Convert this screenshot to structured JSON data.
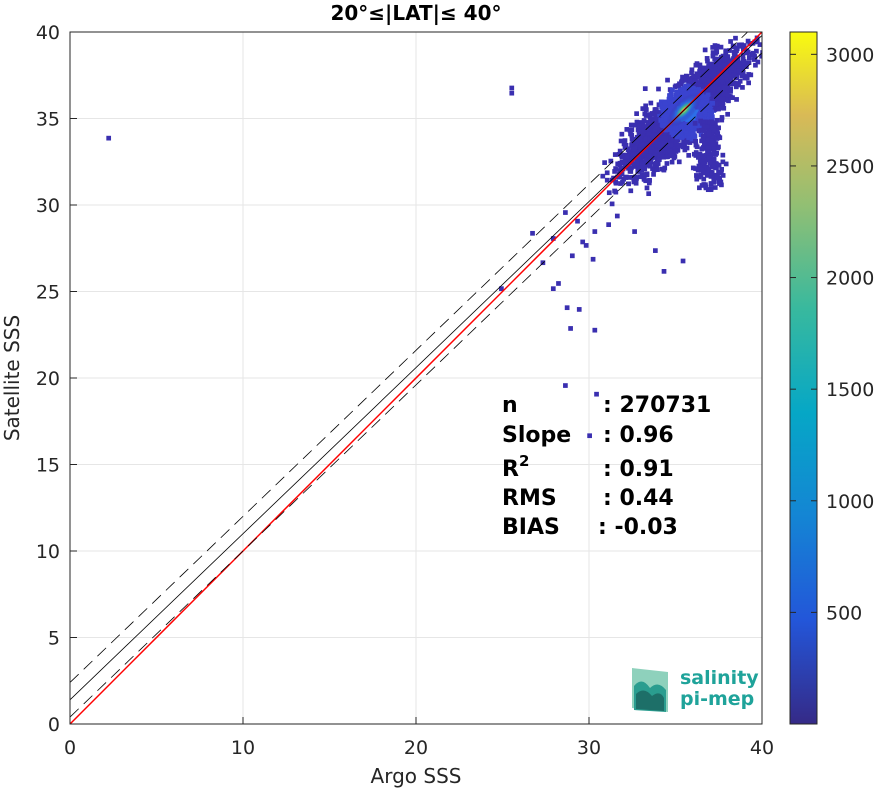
{
  "chart_data": {
    "type": "heatmap",
    "title": "20°≤|LAT|≤ 40°",
    "xlabel": "Argo SSS",
    "ylabel": "Satellite SSS",
    "xlim": [
      0,
      40
    ],
    "ylim": [
      0,
      40
    ],
    "xticks": [
      "0",
      "10",
      "20",
      "30",
      "40"
    ],
    "yticks": [
      "0",
      "5",
      "10",
      "15",
      "20",
      "25",
      "30",
      "35",
      "40"
    ],
    "grid": true,
    "colorbar": {
      "range": [
        0,
        3100
      ],
      "ticks": [
        "500",
        "1000",
        "1500",
        "2000",
        "2500",
        "3000"
      ],
      "colormap": "parula"
    },
    "reference_lines": [
      {
        "name": "1:1",
        "slope": 1,
        "intercept": 0,
        "color": "#ff0000"
      },
      {
        "name": "fit",
        "slope": 0.96,
        "intercept": 1.4,
        "color": "#000000"
      },
      {
        "name": "fit+1",
        "slope": 0.96,
        "intercept": 2.4,
        "color": "#000000",
        "dash": true
      },
      {
        "name": "fit-1",
        "slope": 0.96,
        "intercept": 0.4,
        "color": "#000000",
        "dash": true
      }
    ],
    "density_core": {
      "x": 35.5,
      "y": 35.5,
      "peak_count": 3000
    },
    "stats": [
      {
        "label": "n",
        "value": ": 270731"
      },
      {
        "label": "Slope",
        "value": ": 0.96"
      },
      {
        "label": "R",
        "sup": "2",
        "value": ": 0.91"
      },
      {
        "label": "RMS",
        "value": ": 0.44"
      },
      {
        "label": "BIAS",
        "value": ": -0.03"
      }
    ]
  },
  "logo": {
    "line1": "salinity",
    "line2": "pi-mep"
  }
}
